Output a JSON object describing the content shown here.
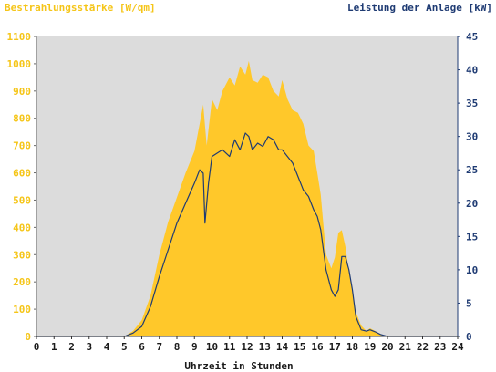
{
  "chart_data": {
    "type": "area",
    "left_axis_title": "Bestrahlungsstärke [W/qm]",
    "right_axis_title": "Leistung der Anlage [kW]",
    "xlabel": "Uhrzeit in Stunden",
    "xlim": [
      0,
      24
    ],
    "ylim_left": [
      0,
      1100
    ],
    "ylim_right": [
      0,
      45
    ],
    "x_ticks": [
      "0",
      "1",
      "2",
      "3",
      "4",
      "5",
      "6",
      "7",
      "8",
      "9",
      "10",
      "11",
      "12",
      "13",
      "14",
      "15",
      "16",
      "17",
      "18",
      "19",
      "20",
      "21",
      "22",
      "23",
      "24"
    ],
    "y_ticks_left": [
      "0",
      "100",
      "200",
      "300",
      "400",
      "500",
      "600",
      "700",
      "800",
      "900",
      "1000",
      "1100"
    ],
    "y_ticks_right": [
      "0",
      "5",
      "10",
      "15",
      "20",
      "25",
      "30",
      "35",
      "40",
      "45"
    ],
    "grid": false,
    "colors": {
      "irradiance_fill": "#ffc82a",
      "power_line": "#1f3b73",
      "plot_background": "#dcdcdc",
      "left_axis": "#f5c518",
      "right_axis": "#1f3b73"
    },
    "series": [
      {
        "axis": "left",
        "style": "area",
        "x": [
          0,
          5.0,
          5.5,
          6.0,
          6.5,
          7.0,
          7.5,
          8.0,
          8.5,
          9.0,
          9.3,
          9.5,
          9.7,
          10.0,
          10.3,
          10.6,
          11.0,
          11.3,
          11.6,
          11.9,
          12.1,
          12.3,
          12.6,
          12.9,
          13.2,
          13.5,
          13.8,
          14.0,
          14.3,
          14.6,
          14.9,
          15.2,
          15.5,
          15.8,
          16.0,
          16.2,
          16.5,
          16.8,
          17.0,
          17.2,
          17.4,
          17.6,
          17.8,
          18.0,
          18.2,
          18.5,
          18.8,
          19.0,
          19.3,
          19.6,
          20.0,
          24
        ],
        "values": [
          0,
          0,
          20,
          60,
          150,
          300,
          420,
          510,
          600,
          680,
          780,
          850,
          700,
          870,
          830,
          900,
          950,
          920,
          990,
          960,
          1010,
          940,
          930,
          960,
          950,
          900,
          880,
          940,
          870,
          830,
          820,
          780,
          700,
          680,
          600,
          520,
          300,
          250,
          290,
          380,
          390,
          330,
          240,
          160,
          90,
          40,
          20,
          30,
          20,
          8,
          0,
          0
        ]
      },
      {
        "axis": "right",
        "style": "line",
        "x": [
          0,
          5.0,
          5.5,
          6.0,
          6.5,
          7.0,
          7.5,
          8.0,
          8.5,
          9.0,
          9.3,
          9.5,
          9.6,
          9.8,
          10.0,
          10.3,
          10.6,
          11.0,
          11.3,
          11.6,
          11.9,
          12.1,
          12.3,
          12.6,
          12.9,
          13.2,
          13.5,
          13.8,
          14.0,
          14.3,
          14.6,
          14.9,
          15.2,
          15.5,
          15.8,
          16.0,
          16.2,
          16.5,
          16.8,
          17.0,
          17.2,
          17.4,
          17.6,
          17.8,
          18.0,
          18.2,
          18.5,
          18.8,
          19.0,
          19.3,
          19.6,
          20.0,
          24
        ],
        "values": [
          0,
          0,
          0.5,
          1.5,
          4.5,
          9,
          13,
          17,
          20,
          23,
          25,
          24.5,
          17,
          23,
          27,
          27.5,
          28,
          27,
          29.5,
          28,
          30.5,
          30,
          28,
          29,
          28.5,
          30,
          29.5,
          28,
          28,
          27,
          26,
          24,
          22,
          21,
          19,
          18,
          16,
          10,
          7,
          6,
          7,
          12,
          12,
          10,
          7,
          3,
          1,
          0.8,
          1,
          0.7,
          0.3,
          0,
          0
        ]
      }
    ]
  }
}
